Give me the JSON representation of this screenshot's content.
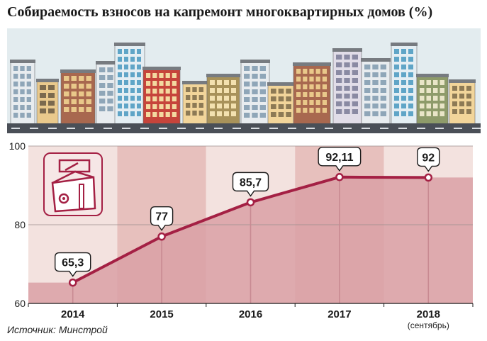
{
  "title": "Собираемость взносов на капремонт многоквартирных домов (%)",
  "source": "Источник: Минстрой",
  "colors": {
    "line": "#a42044",
    "area_dark": "#d9a0a6",
    "area_light": "#efd7d6",
    "band_dark": "#e7c0bd",
    "band_light": "#f3e2df",
    "road": "#4a4f57",
    "sky": "#e3ecef"
  },
  "icon": "toolbox-icon",
  "chart_data": {
    "type": "area",
    "title": "Собираемость взносов на капремонт многоквартирных домов (%)",
    "categories": [
      "2014",
      "2015",
      "2016",
      "2017",
      "2018"
    ],
    "category_sublabels": [
      "",
      "",
      "",
      "",
      "(сентябрь)"
    ],
    "values": [
      65.3,
      77,
      85.7,
      92.11,
      92
    ],
    "data_labels": [
      "65,3",
      "77",
      "85,7",
      "92,11",
      "92"
    ],
    "yticks": [
      60,
      80,
      100
    ],
    "ylim": [
      60,
      100
    ],
    "grid": true,
    "legend": "none"
  }
}
